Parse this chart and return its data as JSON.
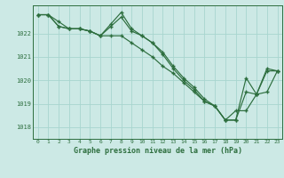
{
  "title": "Graphe pression niveau de la mer (hPa)",
  "bg_color": "#cce9e5",
  "grid_color": "#a8d5cf",
  "line_color": "#2d6e3e",
  "ylim": [
    1017.5,
    1023.2
  ],
  "xlim": [
    -0.5,
    23.5
  ],
  "yticks": [
    1018,
    1019,
    1020,
    1021,
    1022
  ],
  "xticks": [
    0,
    1,
    2,
    3,
    4,
    5,
    6,
    7,
    8,
    9,
    10,
    11,
    12,
    13,
    14,
    15,
    16,
    17,
    18,
    19,
    20,
    21,
    22,
    23
  ],
  "series": [
    [
      1022.8,
      1022.8,
      1022.5,
      1022.2,
      1022.2,
      1022.1,
      1021.9,
      1022.4,
      1022.9,
      1022.2,
      1021.9,
      1021.6,
      1021.2,
      1020.6,
      1020.1,
      1019.7,
      1019.2,
      1018.9,
      1018.3,
      1018.3,
      1020.1,
      1019.4,
      1020.4,
      1020.4
    ],
    [
      1022.8,
      1022.8,
      1022.3,
      1022.2,
      1022.2,
      1022.1,
      1021.9,
      1022.3,
      1022.7,
      1022.1,
      1021.9,
      1021.6,
      1021.1,
      1020.5,
      1020.0,
      1019.6,
      1019.1,
      1018.9,
      1018.3,
      1018.3,
      1019.5,
      1019.4,
      1019.5,
      1020.4
    ],
    [
      1022.8,
      1022.8,
      1022.3,
      1022.2,
      1022.2,
      1022.1,
      1021.9,
      1021.9,
      1021.9,
      1021.6,
      1021.3,
      1021.0,
      1020.6,
      1020.3,
      1019.9,
      1019.5,
      1019.1,
      1018.9,
      1018.3,
      1018.7,
      1018.7,
      1019.4,
      1020.5,
      1020.4
    ]
  ]
}
